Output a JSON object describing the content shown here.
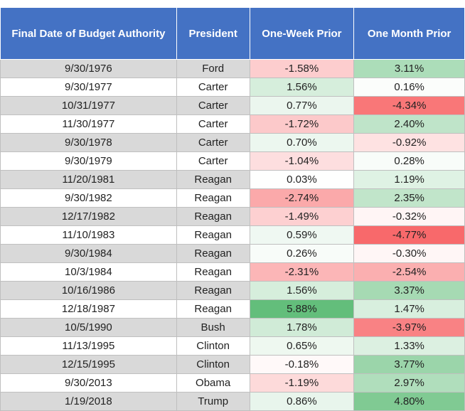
{
  "chart_data": {
    "type": "table",
    "columns": [
      "Final Date of Budget Authority",
      "President",
      "One-Week Prior",
      "One Month Prior"
    ],
    "rows": [
      {
        "date": "9/30/1976",
        "president": "Ford",
        "week": "-1.58%",
        "month": "3.11%"
      },
      {
        "date": "9/30/1977",
        "president": "Carter",
        "week": "1.56%",
        "month": "0.16%"
      },
      {
        "date": "10/31/1977",
        "president": "Carter",
        "week": "0.77%",
        "month": "-4.34%"
      },
      {
        "date": "11/30/1977",
        "president": "Carter",
        "week": "-1.72%",
        "month": "2.40%"
      },
      {
        "date": "9/30/1978",
        "president": "Carter",
        "week": "0.70%",
        "month": "-0.92%"
      },
      {
        "date": "9/30/1979",
        "president": "Carter",
        "week": "-1.04%",
        "month": "0.28%"
      },
      {
        "date": "11/20/1981",
        "president": "Reagan",
        "week": "0.03%",
        "month": "1.19%"
      },
      {
        "date": "9/30/1982",
        "president": "Reagan",
        "week": "-2.74%",
        "month": "2.35%"
      },
      {
        "date": "12/17/1982",
        "president": "Reagan",
        "week": "-1.49%",
        "month": "-0.32%"
      },
      {
        "date": "11/10/1983",
        "president": "Reagan",
        "week": "0.59%",
        "month": "-4.77%"
      },
      {
        "date": "9/30/1984",
        "president": "Reagan",
        "week": "0.26%",
        "month": "-0.30%"
      },
      {
        "date": "10/3/1984",
        "president": "Reagan",
        "week": "-2.31%",
        "month": "-2.54%"
      },
      {
        "date": "10/16/1986",
        "president": "Reagan",
        "week": "1.56%",
        "month": "3.37%"
      },
      {
        "date": "12/18/1987",
        "president": "Reagan",
        "week": "5.88%",
        "month": "1.47%"
      },
      {
        "date": "10/5/1990",
        "president": "Bush",
        "week": "1.78%",
        "month": "-3.97%"
      },
      {
        "date": "11/13/1995",
        "president": "Clinton",
        "week": "0.65%",
        "month": "1.33%"
      },
      {
        "date": "12/15/1995",
        "president": "Clinton",
        "week": "-0.18%",
        "month": "3.77%"
      },
      {
        "date": "9/30/2013",
        "president": "Obama",
        "week": "-1.19%",
        "month": "2.97%"
      },
      {
        "date": "1/19/2018",
        "president": "Trump",
        "week": "0.86%",
        "month": "4.80%"
      }
    ]
  },
  "colors": {
    "header_bg": "#4472c4",
    "header_text": "#ffffff",
    "stripe_gray": "#d9d9d9",
    "positive_max": "#63be7b",
    "negative_max": "#f8696b",
    "neutral": "#ffffff"
  }
}
